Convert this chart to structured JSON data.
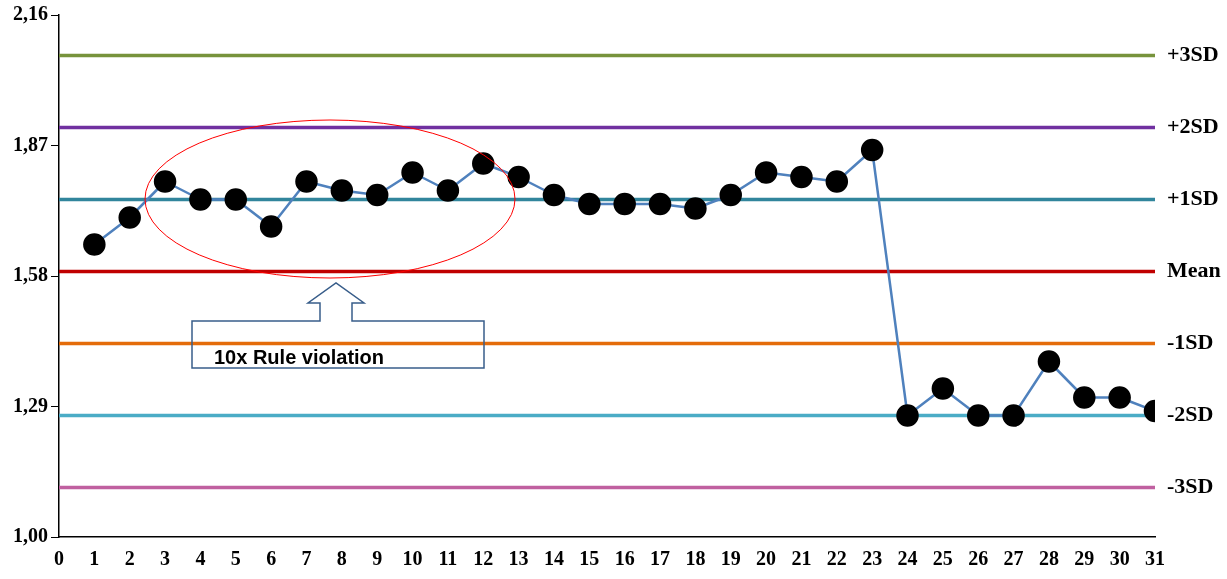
{
  "chart_data": {
    "type": "line",
    "x": [
      1,
      2,
      3,
      4,
      5,
      6,
      7,
      8,
      9,
      10,
      11,
      12,
      13,
      14,
      15,
      16,
      17,
      18,
      19,
      20,
      21,
      22,
      23,
      24,
      25,
      26,
      27,
      28,
      29,
      30,
      31
    ],
    "series": [
      {
        "color": "#4f81bd",
        "values": [
          1.65,
          1.71,
          1.79,
          1.75,
          1.75,
          1.69,
          1.79,
          1.77,
          1.76,
          1.81,
          1.77,
          1.83,
          1.8,
          1.76,
          1.74,
          1.74,
          1.74,
          1.73,
          1.76,
          1.81,
          1.8,
          1.79,
          1.86,
          1.27,
          1.33,
          1.27,
          1.27,
          1.39,
          1.31,
          1.31,
          1.28
        ]
      }
    ],
    "marker": "circle",
    "line_style": "solid",
    "xlim": [
      0,
      31
    ],
    "xticks": [
      0,
      1,
      2,
      3,
      4,
      5,
      6,
      7,
      8,
      9,
      10,
      11,
      12,
      13,
      14,
      15,
      16,
      17,
      18,
      19,
      20,
      21,
      22,
      23,
      24,
      25,
      26,
      27,
      28,
      29,
      30,
      31
    ],
    "ylim": [
      1.0,
      2.16
    ],
    "yticks": [
      {
        "value": 1.0,
        "label": "1,00"
      },
      {
        "value": 1.29,
        "label": "1,29"
      },
      {
        "value": 1.58,
        "label": "1,58"
      },
      {
        "value": 1.87,
        "label": "1,87"
      },
      {
        "value": 2.16,
        "label": "2,16"
      }
    ],
    "grid": false,
    "legend": false,
    "ref_lines": [
      {
        "axis": "y",
        "value": 2.07,
        "label": "+3SD",
        "color": "#77933c"
      },
      {
        "axis": "y",
        "value": 1.91,
        "label": "+2SD",
        "color": "#7030a0"
      },
      {
        "axis": "y",
        "value": 1.75,
        "label": "+1SD",
        "color": "#31859c"
      },
      {
        "axis": "y",
        "value": 1.59,
        "label": "Mean",
        "color": "#c00000"
      },
      {
        "axis": "y",
        "value": 1.43,
        "label": "-1SD",
        "color": "#e46c0a"
      },
      {
        "axis": "y",
        "value": 1.27,
        "label": "-2SD",
        "color": "#4bacc6"
      },
      {
        "axis": "y",
        "value": 1.11,
        "label": "-3SD",
        "color": "#c060a0"
      }
    ],
    "annotations": [
      "10x   Rule violation"
    ]
  }
}
